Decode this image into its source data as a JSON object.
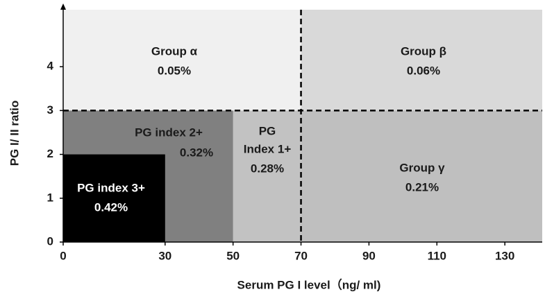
{
  "chart_data": {
    "type": "region",
    "x_label": "Serum PG I level（ng/ ml)",
    "y_label": "PG I/ II ratio",
    "xlim": [
      0,
      141
    ],
    "ylim": [
      0,
      5.3
    ],
    "xticks": [
      0,
      30,
      50,
      70,
      90,
      110,
      130
    ],
    "yticks": [
      0,
      1,
      2,
      3,
      4
    ],
    "thresholds": {
      "x": 70,
      "y": 3
    },
    "regions": [
      {
        "label": [
          "Group α"
        ],
        "xrange": [
          0,
          70
        ],
        "yrange": [
          3,
          5.3
        ],
        "color": "#f0f0f0",
        "value": 0.05,
        "value_label": "0.05%"
      },
      {
        "label": [
          "Group β"
        ],
        "xrange": [
          70,
          141
        ],
        "yrange": [
          3,
          5.3
        ],
        "color": "#d9d9d9",
        "value": 0.06,
        "value_label": "0.06%"
      },
      {
        "label": [
          "Group γ"
        ],
        "xrange": [
          70,
          141
        ],
        "yrange": [
          0,
          3
        ],
        "color": "#bfbfbf",
        "value": 0.21,
        "value_label": "0.21%"
      },
      {
        "label": [
          "PG",
          "Index 1+"
        ],
        "xrange": [
          50,
          70
        ],
        "yrange": [
          0,
          3
        ],
        "color": "#c2c2c2",
        "value": 0.28,
        "value_label": "0.28%"
      },
      {
        "label": [
          "PG index 2+"
        ],
        "xrange": [
          0,
          50
        ],
        "yrange": [
          0,
          3
        ],
        "color": "#808080",
        "value": 0.32,
        "value_label": "0.32%"
      },
      {
        "label": [
          "PG index 3+"
        ],
        "xrange": [
          0,
          30
        ],
        "yrange": [
          0,
          2
        ],
        "color": "#000000",
        "value": 0.42,
        "value_label": "0.42%"
      }
    ]
  }
}
